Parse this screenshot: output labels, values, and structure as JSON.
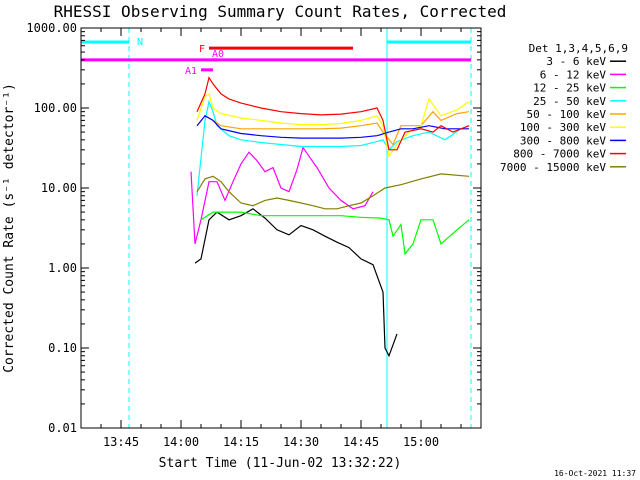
{
  "chart_data": {
    "type": "line",
    "title": "RHESSI Observing Summary Count Rates, Corrected",
    "xlabel": "Start Time (11-Jun-02 13:32:22)",
    "ylabel": "Corrected Count Rate (s⁻¹ detector⁻¹)",
    "timestamp": "16-Oct-2021 11:37",
    "y_scale": "log",
    "ylim": [
      0.01,
      1000
    ],
    "xlim_minutes": [
      -25,
      75
    ],
    "x_ticks": [
      {
        "label": "13:45",
        "value": -15
      },
      {
        "label": "14:00",
        "value": 0
      },
      {
        "label": "14:15",
        "value": 15
      },
      {
        "label": "14:30",
        "value": 30
      },
      {
        "label": "14:45",
        "value": 45
      },
      {
        "label": "15:00",
        "value": 60
      }
    ],
    "y_ticks": [
      {
        "label": "1000.00",
        "value": 1000
      },
      {
        "label": "100.00",
        "value": 100
      },
      {
        "label": "10.00",
        "value": 10
      },
      {
        "label": "1.00",
        "value": 1
      },
      {
        "label": "0.10",
        "value": 0.1
      },
      {
        "label": "0.01",
        "value": 0.01
      }
    ],
    "legend_title": "Det 1,3,4,5,6,9",
    "legend_position": "top-right, outside plot",
    "series": [
      {
        "name": "3 - 6 keV",
        "color": "#000000",
        "points": [
          [
            3.5,
            1.15
          ],
          [
            5,
            1.3
          ],
          [
            7,
            4
          ],
          [
            9,
            5
          ],
          [
            12,
            4
          ],
          [
            15,
            4.5
          ],
          [
            18,
            5.5
          ],
          [
            21,
            4.2
          ],
          [
            24,
            3
          ],
          [
            27,
            2.6
          ],
          [
            30,
            3.4
          ],
          [
            33,
            3
          ],
          [
            36,
            2.5
          ],
          [
            39,
            2.1
          ],
          [
            42,
            1.8
          ],
          [
            45,
            1.3
          ],
          [
            48,
            1.1
          ],
          [
            50.5,
            0.5
          ],
          [
            51,
            0.1
          ],
          [
            52,
            0.08
          ],
          [
            54,
            0.15
          ]
        ]
      },
      {
        "name": "6 - 12 keV",
        "color": "#ff00ff",
        "points": [
          [
            2.5,
            16
          ],
          [
            3.5,
            2
          ],
          [
            5,
            4
          ],
          [
            7,
            12
          ],
          [
            9,
            12
          ],
          [
            11,
            7
          ],
          [
            13,
            12
          ],
          [
            15,
            20
          ],
          [
            17,
            28
          ],
          [
            19,
            22
          ],
          [
            21,
            16
          ],
          [
            23,
            18
          ],
          [
            25,
            10
          ],
          [
            27,
            9
          ],
          [
            29,
            17
          ],
          [
            30.5,
            32
          ],
          [
            32,
            25
          ],
          [
            34,
            18
          ],
          [
            37,
            10
          ],
          [
            40,
            7
          ],
          [
            43,
            5.5
          ],
          [
            46,
            6
          ],
          [
            48,
            9
          ]
        ]
      },
      {
        "name": "12 - 25 keV",
        "color": "#00ff00",
        "points": [
          [
            5,
            4
          ],
          [
            8,
            5
          ],
          [
            11,
            5
          ],
          [
            15,
            5
          ],
          [
            20,
            4.5
          ],
          [
            25,
            4.5
          ],
          [
            30,
            4.5
          ],
          [
            35,
            4.5
          ],
          [
            40,
            4.5
          ],
          [
            45,
            4.3
          ],
          [
            50,
            4.2
          ],
          [
            52,
            4
          ],
          [
            53,
            2.5
          ],
          [
            55,
            3.5
          ],
          [
            56,
            1.5
          ],
          [
            58,
            2
          ],
          [
            60,
            4
          ],
          [
            63,
            4
          ],
          [
            65,
            2
          ],
          [
            69,
            3
          ],
          [
            72,
            4
          ]
        ]
      },
      {
        "name": "25 - 50 keV",
        "color": "#00ffff",
        "points": [
          [
            4,
            8
          ],
          [
            6,
            70
          ],
          [
            7,
            120
          ],
          [
            8,
            90
          ],
          [
            9,
            60
          ],
          [
            12,
            45
          ],
          [
            15,
            40
          ],
          [
            20,
            37
          ],
          [
            25,
            35
          ],
          [
            30,
            33
          ],
          [
            35,
            33
          ],
          [
            40,
            33
          ],
          [
            45,
            34
          ],
          [
            49,
            38
          ],
          [
            50.5,
            40
          ],
          [
            52,
            30
          ],
          [
            54,
            38
          ],
          [
            58,
            45
          ],
          [
            62,
            50
          ],
          [
            66,
            40
          ],
          [
            70,
            55
          ],
          [
            72,
            60
          ]
        ]
      },
      {
        "name": "50 - 100 keV",
        "color": "#ffa500",
        "points": [
          [
            4,
            60
          ],
          [
            6,
            80
          ],
          [
            8,
            70
          ],
          [
            10,
            60
          ],
          [
            15,
            55
          ],
          [
            20,
            55
          ],
          [
            25,
            55
          ],
          [
            30,
            55
          ],
          [
            35,
            55
          ],
          [
            40,
            56
          ],
          [
            45,
            60
          ],
          [
            49,
            65
          ],
          [
            50.5,
            50
          ],
          [
            53,
            35
          ],
          [
            55,
            60
          ],
          [
            60,
            60
          ],
          [
            63,
            90
          ],
          [
            65,
            70
          ],
          [
            69,
            85
          ],
          [
            72,
            90
          ]
        ]
      },
      {
        "name": "100 - 300 keV",
        "color": "#ffff00",
        "points": [
          [
            4,
            70
          ],
          [
            6,
            140
          ],
          [
            7,
            150
          ],
          [
            8,
            100
          ],
          [
            10,
            85
          ],
          [
            15,
            75
          ],
          [
            20,
            70
          ],
          [
            25,
            65
          ],
          [
            30,
            62
          ],
          [
            35,
            62
          ],
          [
            40,
            64
          ],
          [
            45,
            70
          ],
          [
            49,
            80
          ],
          [
            50.5,
            60
          ],
          [
            52,
            25
          ],
          [
            54,
            35
          ],
          [
            57,
            50
          ],
          [
            60,
            60
          ],
          [
            62,
            130
          ],
          [
            65,
            80
          ],
          [
            69,
            95
          ],
          [
            72,
            120
          ]
        ]
      },
      {
        "name": "300 - 800 keV",
        "color": "#0000ff",
        "points": [
          [
            4,
            60
          ],
          [
            6,
            80
          ],
          [
            8,
            70
          ],
          [
            10,
            55
          ],
          [
            15,
            48
          ],
          [
            20,
            45
          ],
          [
            25,
            43
          ],
          [
            30,
            42
          ],
          [
            35,
            42
          ],
          [
            40,
            42
          ],
          [
            45,
            43
          ],
          [
            49,
            45
          ],
          [
            52,
            50
          ],
          [
            55,
            55
          ],
          [
            58,
            55
          ],
          [
            62,
            60
          ],
          [
            66,
            55
          ],
          [
            69,
            55
          ],
          [
            72,
            55
          ]
        ]
      },
      {
        "name": "800 - 7000 keV",
        "color": "#ff0000",
        "points": [
          [
            4,
            90
          ],
          [
            6,
            150
          ],
          [
            7,
            240
          ],
          [
            8,
            200
          ],
          [
            10,
            150
          ],
          [
            12,
            130
          ],
          [
            15,
            115
          ],
          [
            20,
            100
          ],
          [
            25,
            90
          ],
          [
            30,
            85
          ],
          [
            35,
            82
          ],
          [
            40,
            84
          ],
          [
            45,
            90
          ],
          [
            49,
            100
          ],
          [
            50.5,
            70
          ],
          [
            52,
            30
          ],
          [
            54,
            30
          ],
          [
            56,
            50
          ],
          [
            60,
            55
          ],
          [
            63,
            50
          ],
          [
            65,
            60
          ],
          [
            68,
            50
          ],
          [
            72,
            60
          ]
        ]
      },
      {
        "name": "7000 - 15000 keV",
        "color": "#808000",
        "points": [
          [
            4,
            9
          ],
          [
            6,
            13
          ],
          [
            8,
            14
          ],
          [
            10,
            12
          ],
          [
            12,
            9
          ],
          [
            15,
            6.5
          ],
          [
            18,
            6
          ],
          [
            21,
            7
          ],
          [
            24,
            7.5
          ],
          [
            27,
            7
          ],
          [
            30,
            6.5
          ],
          [
            33,
            6
          ],
          [
            36,
            5.5
          ],
          [
            39,
            5.5
          ],
          [
            42,
            6
          ],
          [
            45,
            6.5
          ],
          [
            48,
            8
          ],
          [
            51,
            10
          ],
          [
            55,
            11
          ],
          [
            60,
            13
          ],
          [
            65,
            15
          ],
          [
            72,
            14
          ]
        ]
      }
    ],
    "annotations": {
      "night_bars": [
        {
          "label": "N",
          "color": "#00ffff",
          "start": -25,
          "end": -13
        },
        {
          "label": "",
          "color": "#00ffff",
          "start": 51.5,
          "end": 72.5
        }
      ],
      "saa_bar": {
        "color": "#ff00ff",
        "start": -25,
        "end": 72.5,
        "value": 400
      },
      "flare_bar": {
        "label": "F",
        "color": "#ff0000",
        "start": 7,
        "end": 43,
        "value": 560
      },
      "attenuator_bars": [
        {
          "label": "A1",
          "color": "#ff00ff",
          "start": 5,
          "end": 8,
          "value": 300
        },
        {
          "label": "A0",
          "color": "#ff00ff",
          "start": 8,
          "end": 9,
          "value": 400
        }
      ],
      "vertical_lines": [
        {
          "color": "#00ffff",
          "x": -25,
          "style": "solid"
        },
        {
          "color": "#00ffff",
          "x": -13,
          "style": "dashed"
        },
        {
          "color": "#00ffff",
          "x": 51.5,
          "style": "solid"
        },
        {
          "color": "#00ffff",
          "x": 72.5,
          "style": "dashed"
        }
      ]
    }
  }
}
